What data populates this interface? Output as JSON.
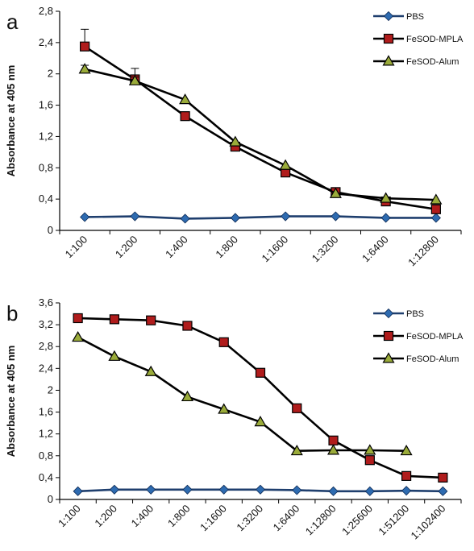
{
  "chart_data": [
    {
      "panel": "a",
      "type": "line",
      "title": "",
      "xlabel": "",
      "ylabel": "Absorbance at 405 nm",
      "ylim": [
        0,
        2.8
      ],
      "yticks": [
        "0",
        "0,4",
        "0,8",
        "1,2",
        "1,6",
        "2",
        "2,4",
        "2,8"
      ],
      "ytick_values": [
        0,
        0.4,
        0.8,
        1.2,
        1.6,
        2.0,
        2.4,
        2.8
      ],
      "categories": [
        "1:100",
        "1:200",
        "1:400",
        "1:800",
        "1:1600",
        "1:3200",
        "1:6400",
        "1:12800"
      ],
      "legend_position": "top-right",
      "series": [
        {
          "name": "PBS",
          "marker": "diamond",
          "values": [
            0.17,
            0.18,
            0.15,
            0.16,
            0.18,
            0.18,
            0.16,
            0.16
          ]
        },
        {
          "name": "FeSOD-MPLA",
          "marker": "square",
          "values": [
            2.35,
            1.93,
            1.46,
            1.07,
            0.74,
            0.49,
            0.37,
            0.27
          ],
          "error_bars": [
            0.22,
            0.14,
            0,
            0,
            0,
            0,
            0,
            0
          ]
        },
        {
          "name": "FeSOD-Alum",
          "marker": "triangle",
          "values": [
            2.06,
            1.91,
            1.67,
            1.13,
            0.83,
            0.47,
            0.41,
            0.39
          ],
          "error_bars": [
            0.05,
            0.05,
            0,
            0,
            0,
            0,
            0,
            0
          ]
        }
      ]
    },
    {
      "panel": "b",
      "type": "line",
      "title": "",
      "xlabel": "",
      "ylabel": "Absorbance at 405 nm",
      "ylim": [
        0,
        3.6
      ],
      "yticks": [
        "0",
        "0,4",
        "0,8",
        "1,2",
        "1,6",
        "2",
        "2,4",
        "2,8",
        "3,2",
        "3,6"
      ],
      "ytick_values": [
        0,
        0.4,
        0.8,
        1.2,
        1.6,
        2.0,
        2.4,
        2.8,
        3.2,
        3.6
      ],
      "categories": [
        "1:100",
        "1:200",
        "1:400",
        "1:800",
        "1:1600",
        "1:3200",
        "1:6400",
        "1:12800",
        "1:25600",
        "1:51200",
        "1:102400"
      ],
      "legend_position": "top-right",
      "series": [
        {
          "name": "PBS",
          "marker": "diamond",
          "values": [
            0.15,
            0.18,
            0.18,
            0.18,
            0.18,
            0.18,
            0.17,
            0.15,
            0.15,
            0.16,
            0.15
          ]
        },
        {
          "name": "FeSOD-MPLA",
          "marker": "square",
          "values": [
            3.32,
            3.3,
            3.28,
            3.18,
            2.88,
            2.32,
            1.67,
            1.08,
            0.72,
            0.43,
            0.4
          ]
        },
        {
          "name": "FeSOD-Alum",
          "marker": "triangle",
          "values": [
            2.97,
            2.62,
            2.34,
            1.88,
            1.65,
            1.42,
            0.89,
            0.9,
            0.9,
            0.89,
            null
          ]
        }
      ]
    }
  ],
  "colors": {
    "pbs_line": "#1f3f6e",
    "pbs_marker": "#2e6bb0",
    "mpla_marker_fill": "#b01c1c",
    "alum_marker_fill": "#9aab3a",
    "series_line": "#000000"
  }
}
